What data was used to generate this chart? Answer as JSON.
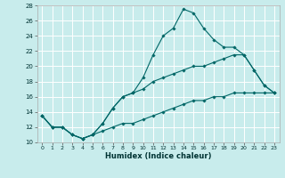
{
  "xlabel": "Humidex (Indice chaleur)",
  "ylabel": "",
  "background_color": "#c8ecec",
  "grid_color": "#ffffff",
  "line_color": "#006666",
  "xlim": [
    -0.5,
    23.5
  ],
  "ylim": [
    10,
    28
  ],
  "xticks": [
    0,
    1,
    2,
    3,
    4,
    5,
    6,
    7,
    8,
    9,
    10,
    11,
    12,
    13,
    14,
    15,
    16,
    17,
    18,
    19,
    20,
    21,
    22,
    23
  ],
  "yticks": [
    10,
    12,
    14,
    16,
    18,
    20,
    22,
    24,
    26,
    28
  ],
  "line1_x": [
    0,
    1,
    2,
    3,
    4,
    5,
    6,
    7,
    8,
    9,
    10,
    11,
    12,
    13,
    14,
    15,
    16,
    17,
    18,
    19,
    20,
    21,
    22,
    23
  ],
  "line1_y": [
    13.5,
    12,
    12,
    11,
    10.5,
    11,
    12.5,
    14.5,
    16,
    16.5,
    18.5,
    21.5,
    24,
    25,
    27.5,
    27,
    25,
    23.5,
    22.5,
    22.5,
    21.5,
    19.5,
    17.5,
    16.5
  ],
  "line2_x": [
    0,
    1,
    2,
    3,
    4,
    5,
    6,
    7,
    8,
    9,
    10,
    11,
    12,
    13,
    14,
    15,
    16,
    17,
    18,
    19,
    20,
    21,
    22,
    23
  ],
  "line2_y": [
    13.5,
    12,
    12,
    11,
    10.5,
    11,
    12.5,
    14.5,
    16,
    16.5,
    17,
    18,
    18.5,
    19,
    19.5,
    20,
    20,
    20.5,
    21,
    21.5,
    21.5,
    19.5,
    17.5,
    16.5
  ],
  "line3_x": [
    0,
    1,
    2,
    3,
    4,
    5,
    6,
    7,
    8,
    9,
    10,
    11,
    12,
    13,
    14,
    15,
    16,
    17,
    18,
    19,
    20,
    21,
    22,
    23
  ],
  "line3_y": [
    13.5,
    12,
    12,
    11,
    10.5,
    11,
    11.5,
    12,
    12.5,
    12.5,
    13,
    13.5,
    14,
    14.5,
    15,
    15.5,
    15.5,
    16,
    16,
    16.5,
    16.5,
    16.5,
    16.5,
    16.5
  ]
}
